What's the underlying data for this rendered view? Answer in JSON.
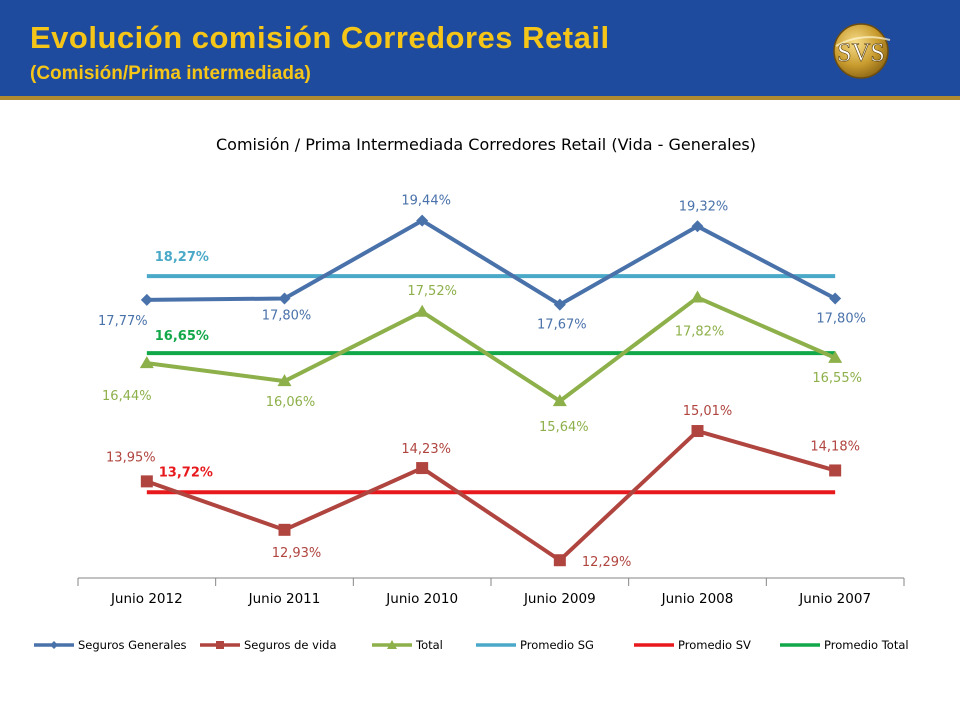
{
  "header": {
    "title": "Evolución comisión Corredores Retail",
    "subtitle": "(Comisión/Prima intermediada)",
    "logo_text": "SVS"
  },
  "colors": {
    "banner": "#1f4b9e",
    "title_text": "#f5c518",
    "seguros_generales": "#4a72aa",
    "seguros_vida": "#b04540",
    "total": "#8db04a",
    "promedio_sg": "#4aa9c8",
    "promedio_sv": "#e8191d",
    "promedio_total": "#12a84a"
  },
  "chart_data": {
    "type": "line",
    "title": "Comisión / Prima Intermediada Corredores Retail (Vida - Generales)",
    "categories": [
      "Junio 2012",
      "Junio 2011",
      "Junio 2010",
      "Junio 2009",
      "Junio 2008",
      "Junio 2007"
    ],
    "series": [
      {
        "name": "Seguros Generales",
        "values": [
          17.77,
          17.8,
          19.44,
          17.67,
          19.32,
          17.8
        ],
        "labels": [
          "17,77%",
          "17,80%",
          "19,44%",
          "17,67%",
          "19,32%",
          "17,80%"
        ],
        "marker": "diamond",
        "color": "#4a72aa"
      },
      {
        "name": "Seguros de vida",
        "values": [
          13.95,
          12.93,
          14.23,
          12.29,
          15.01,
          14.18
        ],
        "labels": [
          "13,95%",
          "12,93%",
          "14,23%",
          "12,29%",
          "15,01%",
          "14,18%"
        ],
        "marker": "square",
        "color": "#b04540"
      },
      {
        "name": "Total",
        "values": [
          16.44,
          16.06,
          17.52,
          15.64,
          17.82,
          16.55
        ],
        "labels": [
          "16,44%",
          "16,06%",
          "17,52%",
          "15,64%",
          "17,82%",
          "16,55%"
        ],
        "marker": "triangle",
        "color": "#8db04a"
      },
      {
        "name": "Promedio SG",
        "values": [
          18.27,
          18.27,
          18.27,
          18.27,
          18.27,
          18.27
        ],
        "labels": [
          "18,27%"
        ],
        "marker": "none",
        "color": "#4aa9c8"
      },
      {
        "name": "Promedio SV",
        "values": [
          13.72,
          13.72,
          13.72,
          13.72,
          13.72,
          13.72
        ],
        "labels": [
          "13,72%"
        ],
        "marker": "none",
        "color": "#e8191d"
      },
      {
        "name": "Promedio Total",
        "values": [
          16.65,
          16.65,
          16.65,
          16.65,
          16.65,
          16.65
        ],
        "labels": [
          "16,65%"
        ],
        "marker": "none",
        "color": "#12a84a"
      }
    ],
    "ylim": [
      12.0,
      20.0
    ],
    "grid": false,
    "legend": "bottom",
    "xlabel": "",
    "ylabel": ""
  }
}
